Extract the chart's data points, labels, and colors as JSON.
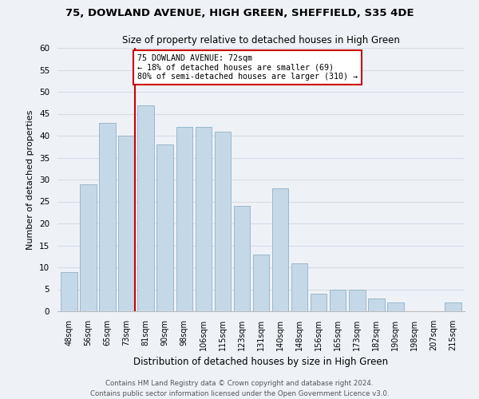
{
  "title1": "75, DOWLAND AVENUE, HIGH GREEN, SHEFFIELD, S35 4DE",
  "title2": "Size of property relative to detached houses in High Green",
  "xlabel": "Distribution of detached houses by size in High Green",
  "ylabel": "Number of detached properties",
  "footer1": "Contains HM Land Registry data © Crown copyright and database right 2024.",
  "footer2": "Contains public sector information licensed under the Open Government Licence v3.0.",
  "bin_labels": [
    "48sqm",
    "56sqm",
    "65sqm",
    "73sqm",
    "81sqm",
    "90sqm",
    "98sqm",
    "106sqm",
    "115sqm",
    "123sqm",
    "131sqm",
    "140sqm",
    "148sqm",
    "156sqm",
    "165sqm",
    "173sqm",
    "182sqm",
    "190sqm",
    "198sqm",
    "207sqm",
    "215sqm"
  ],
  "bar_heights": [
    9,
    29,
    43,
    40,
    47,
    38,
    42,
    42,
    41,
    24,
    13,
    28,
    11,
    4,
    5,
    5,
    3,
    2,
    0,
    0,
    2
  ],
  "bar_color": "#c5d8e8",
  "bar_edge_color": "#9ab8cc",
  "vline_x_index": 3,
  "vline_color": "#cc0000",
  "annotation_line1": "75 DOWLAND AVENUE: 72sqm",
  "annotation_line2": "← 18% of detached houses are smaller (69)",
  "annotation_line3": "80% of semi-detached houses are larger (310) →",
  "annotation_box_color": "#ffffff",
  "annotation_box_edge": "#cc0000",
  "ylim": [
    0,
    60
  ],
  "yticks": [
    0,
    5,
    10,
    15,
    20,
    25,
    30,
    35,
    40,
    45,
    50,
    55,
    60
  ],
  "grid_color": "#d5dde5",
  "bg_color": "#eef2f7"
}
